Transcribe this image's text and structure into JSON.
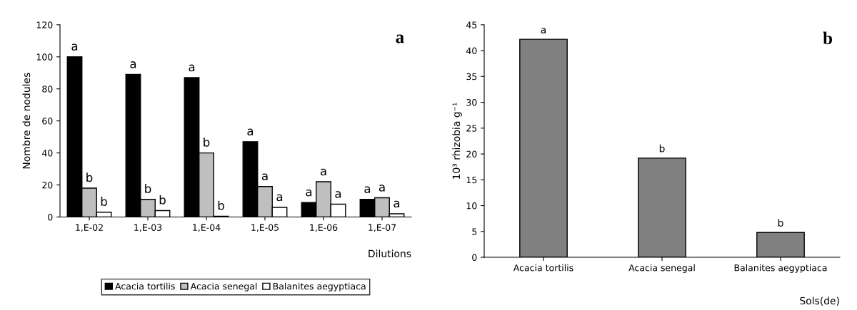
{
  "chart_data": [
    {
      "type": "bar",
      "xlabel": "Dilutions",
      "ylabel": "Nombre de nodules",
      "categories": [
        "1,E-02",
        "1,E-03",
        "1,E-04",
        "1,E-05",
        "1,E-06",
        "1,E-07"
      ],
      "series": [
        {
          "name": "Acacia tortilis",
          "color": "#000000",
          "values": [
            100,
            89,
            87,
            47,
            9,
            11
          ],
          "value_labels": [
            "a",
            "a",
            "a",
            "a",
            "a",
            "a"
          ]
        },
        {
          "name": "Acacia senegal",
          "color": "#bfbfbf",
          "values": [
            18,
            11,
            40,
            19,
            22,
            12
          ],
          "value_labels": [
            "b",
            "b",
            "b",
            "a",
            "a",
            "a"
          ]
        },
        {
          "name": "Balanites aegyptiaca",
          "color": "#ffffff",
          "values": [
            3,
            4,
            0.5,
            6,
            8,
            2
          ],
          "value_labels": [
            "b",
            "b",
            "b",
            "a",
            "a",
            "a"
          ]
        }
      ],
      "ylim": [
        0,
        120
      ],
      "yticks": [
        0,
        20,
        40,
        60,
        80,
        100,
        120
      ],
      "legend": "bottom",
      "annotations": [
        "a"
      ]
    },
    {
      "type": "bar",
      "xlabel": "Sols(de)",
      "ylabel": "10³ rhizobia g⁻¹",
      "categories": [
        "Acacia tortilis",
        "Acacia senegal",
        "Balanites aegyptiaca"
      ],
      "series": [
        {
          "color": "#808080",
          "values": [
            42.2,
            19.2,
            4.8
          ],
          "value_labels": [
            "a",
            "b",
            "b"
          ]
        }
      ],
      "ylim": [
        0,
        45
      ],
      "yticks": [
        0,
        5,
        10,
        15,
        20,
        25,
        30,
        35,
        40,
        45
      ],
      "annotations": [
        "b"
      ]
    }
  ]
}
